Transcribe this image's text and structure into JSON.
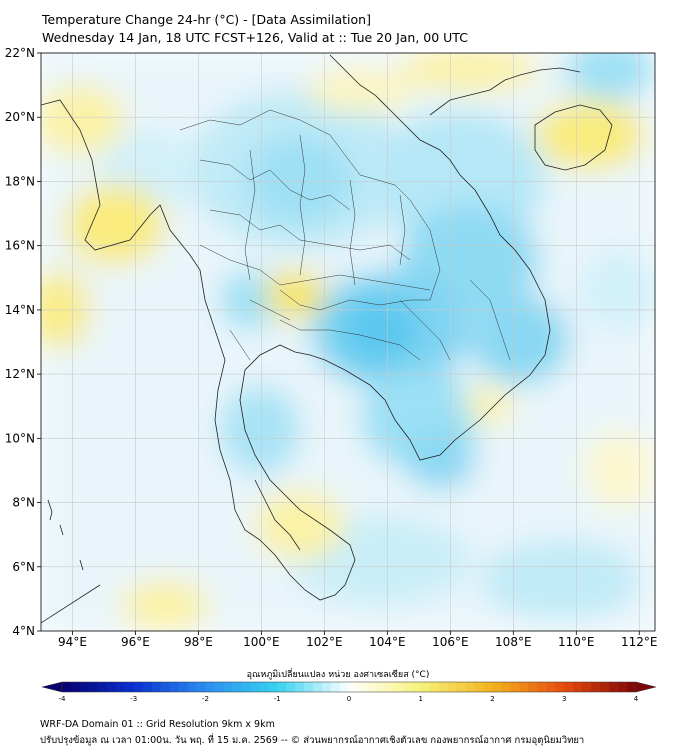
{
  "header": {
    "title": "Temperature Change 24-hr (°C) - [Data Assimilation]",
    "subtitle": "Wednesday 14 Jan, 18 UTC FCST+126, Valid at :: Tue 20 Jan, 00 UTC"
  },
  "map": {
    "lat_labels": [
      "22°N",
      "20°N",
      "18°N",
      "16°N",
      "14°N",
      "12°N",
      "10°N",
      "8°N",
      "6°N",
      "4°N"
    ],
    "lon_labels": [
      "94°E",
      "96°E",
      "98°E",
      "100°E",
      "102°E",
      "104°E",
      "106°E",
      "108°E",
      "110°E",
      "112°E"
    ],
    "lat_range": [
      4,
      22
    ],
    "lon_range": [
      93,
      112.5
    ]
  },
  "colorbar": {
    "title": "อุณหภูมิเปลี่ยนแปลง หน่วย องศาเซลเซียส (°C)",
    "ticks": [
      "-4",
      "-3",
      "-2",
      "-1",
      "0",
      "1",
      "2",
      "3",
      "4"
    ],
    "range": [
      -4,
      4
    ],
    "colors": [
      "#08006e",
      "#0a2fd0",
      "#2b8ef0",
      "#35d2f0",
      "#ffffff",
      "#f6f27a",
      "#f2b21e",
      "#e64a0f",
      "#7e0606"
    ]
  },
  "footer": {
    "line1": "WRF-DA Domain 01 :: Grid Resolution 9km x 9km",
    "line2": "ปรับปรุงข้อมูล ณ เวลา 01:00น. วัน พฤ. ที่ 15 ม.ค. 2569 -- © ส่วนพยากรณ์อากาศเชิงตัวเลข กองพยากรณ์อากาศ กรมอุตุนิยมวิทยา"
  }
}
